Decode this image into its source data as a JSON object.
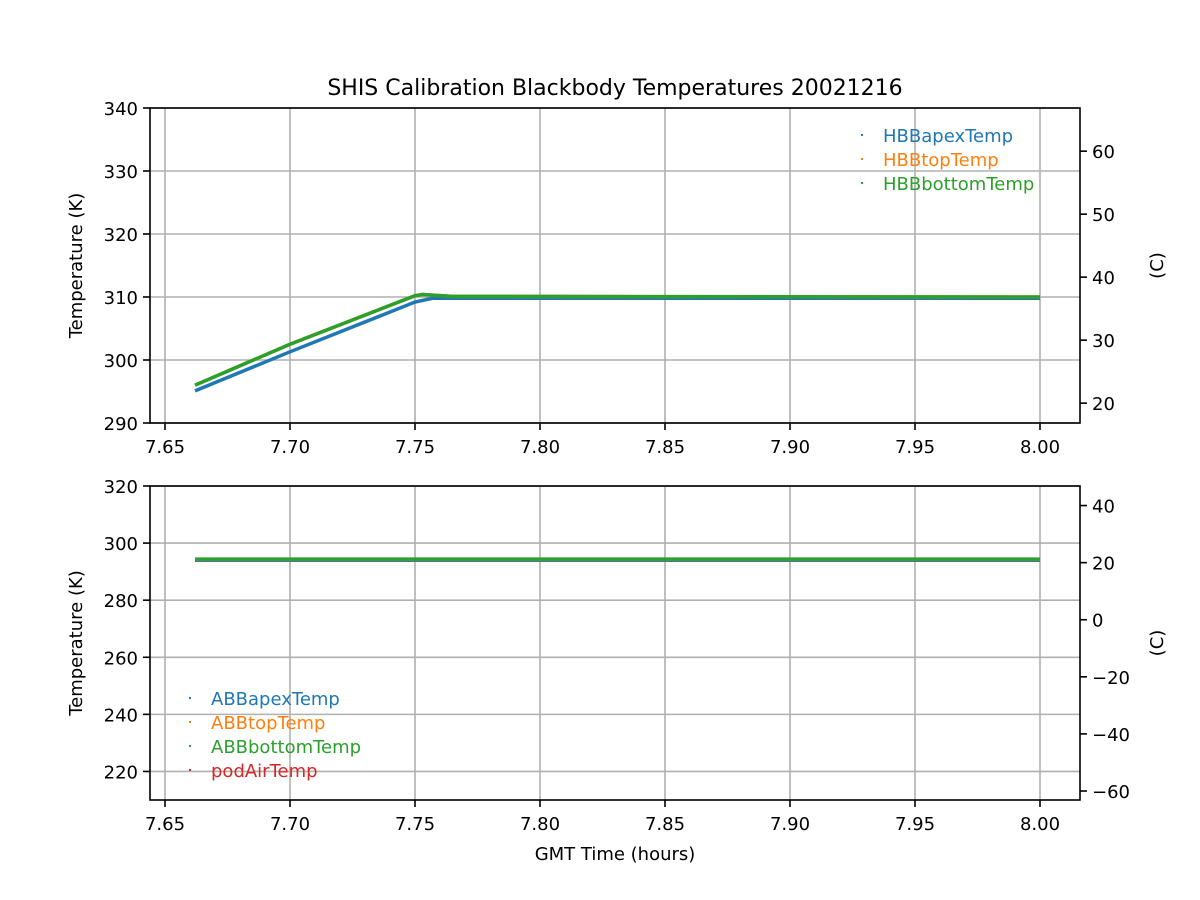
{
  "title": "SHIS Calibration Blackbody Temperatures 20021216",
  "chart_data": [
    {
      "type": "line",
      "ylabel": "Temperature (K)",
      "y2label": "(C)",
      "xlabel": "",
      "xlim": [
        7.644,
        8.016
      ],
      "ylim": [
        290,
        340
      ],
      "y2lim": [
        16.85,
        66.85
      ],
      "xticks": [
        "7.65",
        "7.70",
        "7.75",
        "7.80",
        "7.85",
        "7.90",
        "7.95",
        "8.00"
      ],
      "yticks": [
        "290",
        "300",
        "310",
        "320",
        "330",
        "340"
      ],
      "y2ticks": [
        "20",
        "30",
        "40",
        "50",
        "60"
      ],
      "grid": true,
      "legend": "top-right",
      "series": [
        {
          "name": "HBBapexTemp",
          "color": "#1f77b4",
          "points": [
            [
              7.662,
              295.1
            ],
            [
              7.7,
              301.3
            ],
            [
              7.75,
              309.2
            ],
            [
              7.757,
              309.8
            ],
            [
              8.0,
              309.8
            ]
          ]
        },
        {
          "name": "HBBtopTemp",
          "color": "#ff7f0e",
          "points": [
            [
              7.662,
              296.0
            ],
            [
              7.7,
              302.5
            ],
            [
              7.75,
              310.2
            ],
            [
              7.753,
              310.4
            ],
            [
              7.765,
              310.1
            ],
            [
              8.0,
              310.0
            ]
          ]
        },
        {
          "name": "HBBbottomTemp",
          "color": "#2ca02c",
          "points": [
            [
              7.662,
              296.0
            ],
            [
              7.7,
              302.5
            ],
            [
              7.75,
              310.2
            ],
            [
              7.753,
              310.4
            ],
            [
              7.765,
              310.1
            ],
            [
              8.0,
              310.0
            ]
          ]
        }
      ]
    },
    {
      "type": "line",
      "ylabel": "Temperature (K)",
      "y2label": "(C)",
      "xlabel": "GMT Time (hours)",
      "xlim": [
        7.644,
        8.016
      ],
      "ylim": [
        210,
        320
      ],
      "y2lim": [
        -63.15,
        46.85
      ],
      "xticks": [
        "7.65",
        "7.70",
        "7.75",
        "7.80",
        "7.85",
        "7.90",
        "7.95",
        "8.00"
      ],
      "yticks": [
        "220",
        "240",
        "260",
        "280",
        "300",
        "320"
      ],
      "y2ticks": [
        "-60",
        "-40",
        "-20",
        "0",
        "20",
        "40"
      ],
      "grid": true,
      "legend": "bottom-left",
      "series": [
        {
          "name": "ABBapexTemp",
          "color": "#1f77b4",
          "points": [
            [
              7.662,
              294.0
            ],
            [
              8.0,
              294.0
            ]
          ]
        },
        {
          "name": "ABBtopTemp",
          "color": "#ff7f0e",
          "points": [
            [
              7.662,
              294.3
            ],
            [
              8.0,
              294.3
            ]
          ]
        },
        {
          "name": "ABBbottomTemp",
          "color": "#2ca02c",
          "points": [
            [
              7.662,
              294.4
            ],
            [
              8.0,
              294.4
            ]
          ]
        },
        {
          "name": "podAirTemp",
          "color": "#d62728",
          "points": []
        }
      ]
    }
  ]
}
